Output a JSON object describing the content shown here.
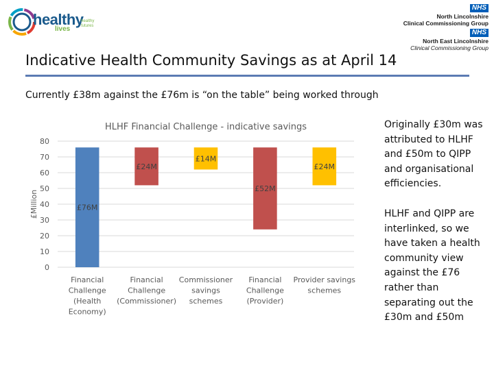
{
  "header": {
    "logo_text": "healthy",
    "logo_lives": "lives",
    "logo_futures": "healthy futures",
    "nhs1_badge": "NHS",
    "nhs1_line1": "North Lincolnshire",
    "nhs1_line2": "Clinical Commissioning Group",
    "nhs2_badge": "NHS",
    "nhs2_line1": "North East Lincolnshire",
    "nhs2_line2": "Clinical Commissioning Group"
  },
  "title": "Indicative Health Community Savings as at April 14",
  "subtitle": "Currently £38m against the £76m is “on the table” being worked through",
  "side_text": {
    "para1": "Originally £30m was attributed to HLHF and £50m to QIPP and organisational efficiencies.",
    "para2": "HLHF and QIPP are interlinked, so we have taken a health community view against the £76 rather than separating out the £30m and £50m"
  },
  "chart_data": {
    "type": "bar",
    "title": "HLHF Financial Challenge - indicative savings",
    "ylabel": "£Million",
    "xlabel": "",
    "ylim": [
      0,
      80
    ],
    "yticks": [
      0,
      10,
      20,
      30,
      40,
      50,
      60,
      70,
      80
    ],
    "grid": true,
    "legend": "none",
    "categories": [
      [
        "Financial",
        "Challenge",
        "(Health",
        "Economy)"
      ],
      [
        "Financial",
        "Challenge",
        "(Commissioner)"
      ],
      [
        "Commissioner",
        "savings",
        "schemes"
      ],
      [
        "Financial",
        "Challenge",
        "(Provider)"
      ],
      [
        "Provider savings",
        "schemes"
      ]
    ],
    "bars": [
      {
        "bottom": 0,
        "top": 76,
        "label": "£76M",
        "color": "#4f81bd"
      },
      {
        "bottom": 52,
        "top": 76,
        "label": "£24M",
        "color": "#c0504d"
      },
      {
        "bottom": 62,
        "top": 76,
        "label": "£14M",
        "color": "#ffc000"
      },
      {
        "bottom": 24,
        "top": 76,
        "label": "£52M",
        "color": "#c0504d"
      },
      {
        "bottom": 52,
        "top": 76,
        "label": "£24M",
        "color": "#ffc000"
      }
    ]
  }
}
